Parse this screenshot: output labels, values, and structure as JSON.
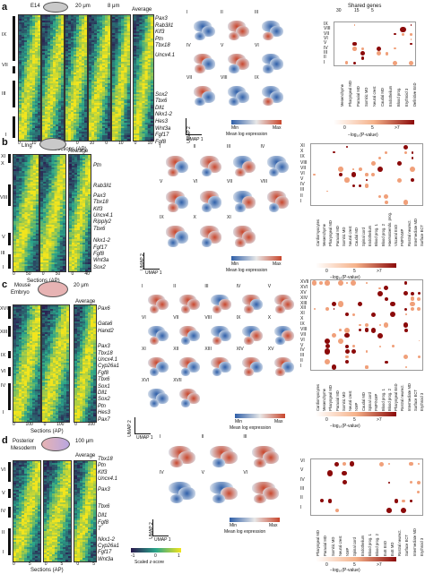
{
  "colors": {
    "heat_low": "#2b1a4f",
    "heat_mid": "#2aa58a",
    "heat_high": "#f2e51d",
    "umap_low": "#2f5fa8",
    "umap_high": "#c8462c",
    "dot_accent": "#8b0a0a"
  },
  "panels": [
    {
      "letter": "a",
      "title_labels": [
        "E14",
        "20 μm",
        "8 μm",
        "Average"
      ],
      "heat_xlabel": "Sections (AP)",
      "heat_ticks": [
        "0",
        "10",
        "0",
        "10",
        "0",
        "10",
        "0",
        "10",
        "0",
        "10"
      ],
      "clusters_left": [
        "IX",
        "VII",
        "III",
        "I"
      ],
      "genes": [
        "Pax3",
        "Rab3il1",
        "Klf3",
        "Ptn",
        "Tbx18",
        "Uncx4.1",
        "Sox2",
        "Tbx6",
        "Dll1",
        "Nkx1-2",
        "Hes3",
        "Wnt3a",
        "Fgf17",
        "Fgf8"
      ],
      "umap_labels": [
        "I",
        "II",
        "III",
        "IV",
        "V",
        "VI",
        "VII",
        "VIII",
        "IX"
      ],
      "umap_axis": [
        "UMAP 2",
        "UMAP 1"
      ],
      "colorbar": [
        "Min",
        "Max"
      ],
      "colorbar_title": "Mean log expression",
      "dot_title": "Shared genes",
      "dot_sizes": [
        "30",
        "15",
        "5"
      ],
      "dot_rows": [
        "IX",
        "VIII",
        "VII",
        "VI",
        "V",
        "IV",
        "III",
        "II",
        "I"
      ],
      "dot_cols": [
        "Mesenchyme",
        "Pharyngeal MD",
        "Paraxial MD",
        "Somitic MD",
        "Neural crest",
        "Caudal MD",
        "Endothelium",
        "Blood prog.",
        "Erythroid 3",
        "Definitive EnD"
      ],
      "pval_label": "−log₁₀(P-value)",
      "pval_ticks": [
        "0",
        "5",
        ">7"
      ]
    },
    {
      "letter": "b",
      "title_labels": [
        "LIng",
        "Average"
      ],
      "heat_xlabel": "Sections (AP)",
      "heat_ticks": [
        "0",
        "50",
        "0",
        "50",
        "0",
        "40"
      ],
      "clusters_left": [
        "XI",
        "X",
        "VIII",
        "V",
        "III",
        "I"
      ],
      "genes": [
        "Ptn",
        "Rab3il1",
        "Pax3",
        "Tbx18",
        "Klf3",
        "Uncx4.1",
        "Ripply2",
        "Tbx6",
        "Nkx1-2",
        "Fgf17",
        "Fgf8",
        "Wnt3a",
        "Sox2"
      ],
      "umap_labels": [
        "I",
        "II",
        "III",
        "IV",
        "V",
        "VI",
        "VII",
        "VIII",
        "IX",
        "X",
        "XI"
      ],
      "umap_axis": [
        "UMAP 2",
        "UMAP 1"
      ],
      "colorbar": [
        "Min",
        "Max"
      ],
      "colorbar_title": "Mean log expression",
      "dot_rows": [
        "XI",
        "X",
        "IX",
        "VIII",
        "VII",
        "VI",
        "V",
        "IV",
        "III",
        "II",
        "I"
      ],
      "dot_cols": [
        "Cardiomyocytes",
        "Mesenchyme",
        "Pharyngeal MD",
        "Paraxial MD",
        "Somitic MD",
        "Neural crest",
        "Caudal MD",
        "Spinal cord",
        "Endothelium",
        "Blood prog. 1",
        "Blood prog. 2",
        "Haematoendo. prog.",
        "Visceral EnD",
        "FMP/NMP",
        "Rostral neurect.",
        "Intermediate MD",
        "Surface ECT"
      ],
      "pval_label": "−log₁₀(P-value)",
      "pval_ticks": [
        "0",
        "5",
        ">7"
      ]
    },
    {
      "letter": "c",
      "title_labels": [
        "Mouse",
        "Embryo",
        "20 μm",
        "Average"
      ],
      "heat_xlabel": "Sections (AP)",
      "heat_ticks": [
        "0",
        "100",
        "0",
        "100",
        "0",
        "100"
      ],
      "clusters_left": [
        "XVII",
        "XIII",
        "IX",
        "VI",
        "IV",
        "I"
      ],
      "genes": [
        "Pax6",
        "Gata6",
        "Hand2",
        "Pax3",
        "Tbx18",
        "Uncx4.1",
        "Cyp26a1",
        "Fgf8",
        "Tbx6",
        "Sox1",
        "Dll1",
        "Sox2",
        "Ptn",
        "Hes3",
        "Pax7"
      ],
      "umap_labels": [
        "I",
        "II",
        "III",
        "IV",
        "V",
        "VI",
        "VII",
        "VIII",
        "IX",
        "X",
        "XI",
        "XII",
        "XIII",
        "XIV",
        "XV",
        "XVI",
        "XVII"
      ],
      "umap_axis": [
        "UMAP 2",
        "UMAP 1"
      ],
      "colorbar": [
        "Min",
        "Max"
      ],
      "colorbar_title": "Mean log expression",
      "dot_rows": [
        "XVII",
        "XVI",
        "XV",
        "XIV",
        "XIII",
        "XII",
        "XI",
        "X",
        "IX",
        "VIII",
        "VII",
        "VI",
        "V",
        "IV",
        "III",
        "II",
        "I"
      ],
      "dot_cols": [
        "Cardiomyocytes",
        "Mesenchyme",
        "Pharyngeal MD",
        "Paraxial MD",
        "Somitic MD",
        "Neural crest",
        "NMP",
        "Caudal MD",
        "Spinal cord",
        "FMP/NMP",
        "Blood prog. 1",
        "Blood prog. 2",
        "Pharyngeal EnD",
        "Rostral neurect.",
        "Intermediate MD",
        "Surface ECT",
        "Erythroid 3"
      ],
      "pval_label": "−log₁₀(P-value)",
      "pval_ticks": [
        "0",
        "5",
        ">7"
      ]
    },
    {
      "letter": "d",
      "title_labels": [
        "Posterior",
        "Mesoderm",
        "100 μm",
        "Average"
      ],
      "heat_xlabel": "Sections (AP)",
      "heat_ticks": [
        "0",
        "5",
        "0",
        "5",
        "0",
        "5"
      ],
      "clusters_left": [
        "VI",
        "V",
        "IV",
        "II",
        "I"
      ],
      "genes": [
        "Tbx18",
        "Ptn",
        "Klf3",
        "Uncx4.1",
        "Pax3",
        "Tbx6",
        "Dll1",
        "Fgf8",
        "T",
        "Nkx1-2",
        "Cyp26a1",
        "Fgf17",
        "Wnt3a"
      ],
      "umap_labels": [
        "I",
        "II",
        "III",
        "IV",
        "V",
        "VI"
      ],
      "umap_axis": [
        "UMAP 2",
        "UMAP 1"
      ],
      "colorbar": [
        "-1",
        "0",
        "1"
      ],
      "colorbar_title": "Scaled z-score",
      "colorbar2": [
        "Min",
        "Max"
      ],
      "colorbar2_title": "Mean log expression",
      "dot_rows": [
        "VI",
        "V",
        "IV",
        "III",
        "II",
        "I"
      ],
      "dot_cols": [
        "Pharyngeal MD",
        "Paraxial MD",
        "Somitic MD",
        "Neural crest",
        "NMP",
        "Spinal cord",
        "Endothelium",
        "Blood prog. 1",
        "Blood prog. 2",
        "ExE EnD",
        "ExE MD",
        "Rostral neurect.",
        "Surface ECT",
        "Intermediate MD",
        "Erythroid 3"
      ],
      "pval_label": "−log₁₀(P-value)",
      "pval_ticks": [
        "0",
        "5",
        ">7"
      ]
    }
  ]
}
